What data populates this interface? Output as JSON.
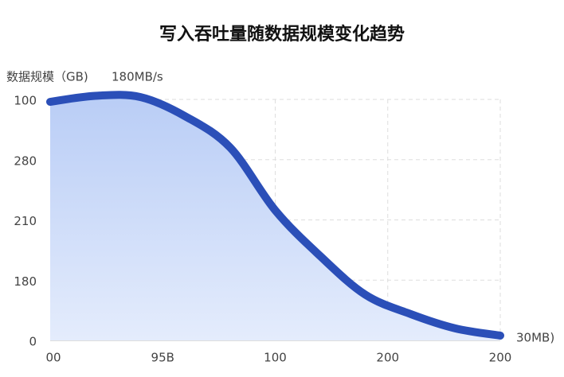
{
  "chart_data": {
    "type": "area",
    "title": "写入吞吐量随数据规模变化趋势",
    "y_axis_label": "数据规模（GB)",
    "annotations": [
      "180MB/s",
      "30MB)"
    ],
    "x": [
      0,
      10,
      20,
      30,
      40,
      50,
      60,
      70,
      80,
      90,
      100
    ],
    "series": [
      {
        "color": "#2b4fb8",
        "values": [
          99,
          101.5,
          101,
          93,
          80,
          54,
          35,
          19,
          11,
          5,
          2
        ]
      }
    ],
    "xlim": [
      0,
      100
    ],
    "ylim": [
      0,
      100
    ],
    "xticks": [
      {
        "value": 0,
        "label": "00"
      },
      {
        "value": 25,
        "label": "95B"
      },
      {
        "value": 50,
        "label": "100"
      },
      {
        "value": 75,
        "label": "200"
      },
      {
        "value": 100,
        "label": "200"
      }
    ],
    "yticks": [
      0,
      {
        "value": 25,
        "label": "180"
      },
      {
        "value": 50,
        "label": "210"
      },
      {
        "value": 75,
        "label": "280"
      },
      100
    ],
    "grid": true
  }
}
